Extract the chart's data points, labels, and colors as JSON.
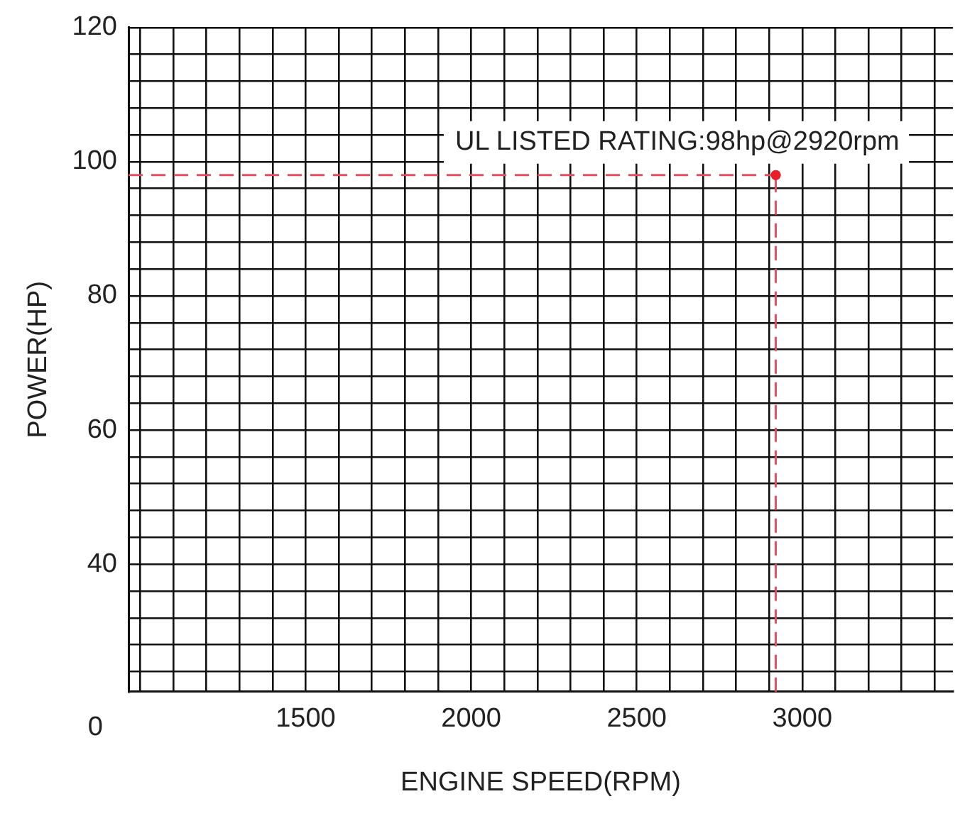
{
  "chart_data": {
    "type": "scatter",
    "xlabel": "ENGINE SPEED(RPM)",
    "ylabel": "POWER(HP)",
    "x": [
      2920
    ],
    "values": [
      98
    ],
    "color": "#e8202a",
    "marker": "circle",
    "xlim": [
      965,
      3455
    ],
    "xticks": [
      {
        "value": 1000,
        "label": null
      },
      {
        "value": 1100,
        "label": null
      },
      {
        "value": 1200,
        "label": null
      },
      {
        "value": 1300,
        "label": null
      },
      {
        "value": 1400,
        "label": null
      },
      1500,
      {
        "value": 1600,
        "label": null
      },
      {
        "value": 1700,
        "label": null
      },
      {
        "value": 1800,
        "label": null
      },
      {
        "value": 1900,
        "label": null
      },
      2000,
      {
        "value": 2100,
        "label": null
      },
      {
        "value": 2200,
        "label": null
      },
      {
        "value": 2300,
        "label": null
      },
      {
        "value": 2400,
        "label": null
      },
      2500,
      {
        "value": 2600,
        "label": null
      },
      {
        "value": 2700,
        "label": null
      },
      {
        "value": 2800,
        "label": null
      },
      {
        "value": 2900,
        "label": null
      },
      3000,
      {
        "value": 3100,
        "label": null
      },
      {
        "value": 3200,
        "label": null
      },
      {
        "value": 3300,
        "label": null
      },
      {
        "value": 3400,
        "label": null
      }
    ],
    "ylim": [
      21,
      120
    ],
    "yticks": [
      {
        "value": 24,
        "label": null
      },
      {
        "value": 28,
        "label": null
      },
      {
        "value": 32,
        "label": null
      },
      {
        "value": 36,
        "label": null
      },
      40,
      {
        "value": 44,
        "label": null
      },
      {
        "value": 48,
        "label": null
      },
      {
        "value": 52,
        "label": null
      },
      {
        "value": 56,
        "label": null
      },
      60,
      {
        "value": 64,
        "label": null
      },
      {
        "value": 68,
        "label": null
      },
      {
        "value": 72,
        "label": null
      },
      {
        "value": 76,
        "label": null
      },
      80,
      {
        "value": 84,
        "label": null
      },
      {
        "value": 88,
        "label": null
      },
      {
        "value": 92,
        "label": null
      },
      {
        "value": 96,
        "label": null
      },
      100,
      {
        "value": 104,
        "label": null
      },
      {
        "value": 108,
        "label": null
      },
      {
        "value": 112,
        "label": null
      },
      {
        "value": 116,
        "label": null
      },
      120
    ],
    "grid": true,
    "legend": false,
    "ref_lines": [
      {
        "axis": "y",
        "value": 98,
        "color": "#e05060",
        "line_style": "dashed"
      },
      {
        "axis": "x",
        "value": 2920,
        "color": "#e05060",
        "line_style": "dashed"
      }
    ],
    "annotations": [
      "0",
      {
        "text": "UL LISTED RATING:98hp@2920rpm",
        "x": 2920,
        "y": 98
      }
    ]
  }
}
